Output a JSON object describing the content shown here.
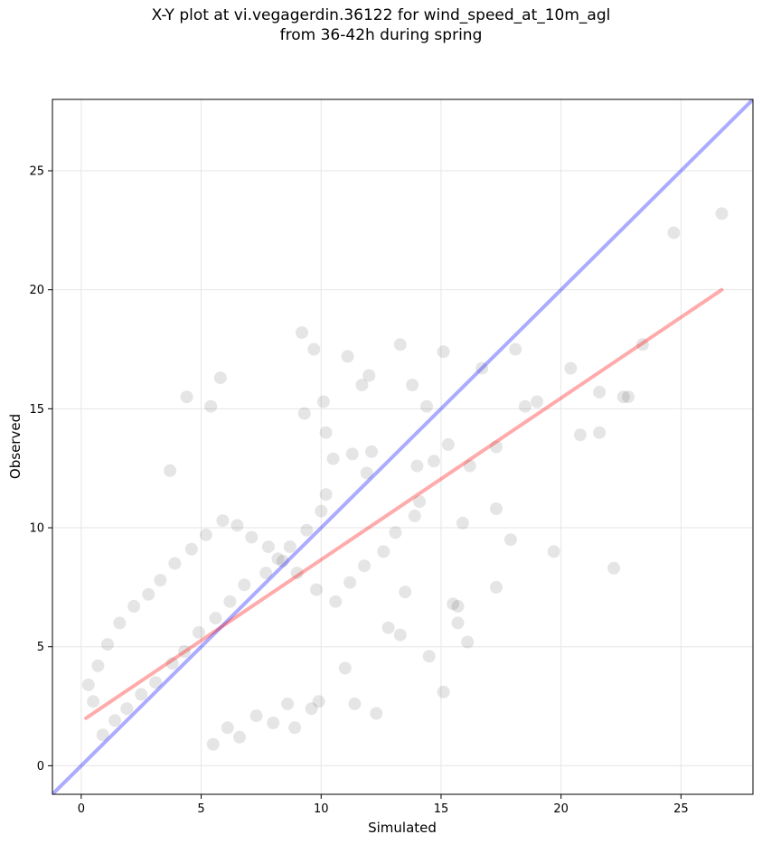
{
  "chart_data": {
    "type": "scatter",
    "title": "X-Y plot at vi.vegagerdin.36122 for wind_speed_at_10m_agl",
    "subtitle": "from 36-42h during spring",
    "xlabel": "Simulated",
    "ylabel": "Observed",
    "xlim": [
      -1.2,
      28.0
    ],
    "ylim": [
      -1.2,
      28.0
    ],
    "xticks": [
      0,
      5,
      10,
      15,
      20,
      25
    ],
    "yticks": [
      0,
      5,
      10,
      15,
      20,
      25
    ],
    "grid": true,
    "legend": "none",
    "colors": {
      "points": "#000000",
      "identity_line": "#0000ff",
      "fit_line": "#ff0000"
    },
    "reference_lines": [
      {
        "kind": "identity",
        "x": [
          -1.2,
          28.0
        ],
        "y": [
          -1.2,
          28.0
        ]
      },
      {
        "kind": "fit",
        "x": [
          0.2,
          26.7
        ],
        "y": [
          2.0,
          20.0
        ]
      }
    ],
    "series": [
      {
        "x": [
          15.1,
          16.7,
          16.2,
          15.9,
          14.1,
          15.3,
          19.0,
          20.4,
          21.6,
          22.6,
          23.4,
          24.7,
          26.7,
          17.3,
          17.3,
          17.9,
          19.7,
          18.5,
          22.2,
          18.1,
          20.8,
          21.6,
          22.8,
          15.7,
          15.5,
          9.2,
          9.7,
          11.1,
          13.3,
          12.0,
          4.4,
          5.4,
          5.8,
          3.7,
          10.1,
          11.7,
          13.8,
          14.4,
          12.1,
          9.3,
          10.2,
          11.3,
          14.0,
          14.7,
          17.3,
          16.1,
          15.7,
          14.5,
          15.1,
          13.3,
          11.0,
          9.9,
          8.6,
          7.3,
          6.1,
          5.5,
          6.6,
          8.0,
          8.9,
          9.6,
          11.4,
          12.3,
          12.8,
          13.5,
          11.9,
          10.5,
          10.2,
          10.0,
          9.4,
          8.7,
          8.2,
          7.7,
          6.8,
          6.2,
          5.6,
          4.9,
          4.3,
          3.8,
          3.1,
          2.5,
          1.9,
          1.4,
          0.9,
          0.5,
          0.3,
          0.7,
          1.1,
          1.6,
          2.2,
          2.8,
          3.3,
          3.9,
          4.6,
          5.2,
          5.9,
          6.5,
          7.1,
          7.8,
          8.4,
          9.0,
          9.8,
          10.6,
          11.2,
          11.8,
          12.6,
          13.1,
          13.9
        ],
        "y": [
          17.4,
          16.7,
          12.6,
          10.2,
          11.1,
          13.5,
          15.3,
          16.7,
          15.7,
          15.5,
          17.7,
          22.4,
          23.2,
          13.4,
          10.8,
          9.5,
          9.0,
          15.1,
          8.3,
          17.5,
          13.9,
          14.0,
          15.5,
          6.0,
          6.8,
          18.2,
          17.5,
          17.2,
          17.7,
          16.4,
          15.5,
          15.1,
          16.3,
          12.4,
          15.3,
          16.0,
          16.0,
          15.1,
          13.2,
          14.8,
          14.0,
          13.1,
          12.6,
          12.8,
          7.5,
          5.2,
          6.7,
          4.6,
          3.1,
          5.5,
          4.1,
          2.7,
          2.6,
          2.1,
          1.6,
          0.9,
          1.2,
          1.8,
          1.6,
          2.4,
          2.6,
          2.2,
          5.8,
          7.3,
          12.3,
          12.9,
          11.4,
          10.7,
          9.9,
          9.2,
          8.7,
          8.1,
          7.6,
          6.9,
          6.2,
          5.6,
          4.8,
          4.3,
          3.5,
          3.0,
          2.4,
          1.9,
          1.3,
          2.7,
          3.4,
          4.2,
          5.1,
          6.0,
          6.7,
          7.2,
          7.8,
          8.5,
          9.1,
          9.7,
          10.3,
          10.1,
          9.6,
          9.2,
          8.6,
          8.1,
          7.4,
          6.9,
          7.7,
          8.4,
          9.0,
          9.8,
          10.5
        ]
      }
    ]
  }
}
